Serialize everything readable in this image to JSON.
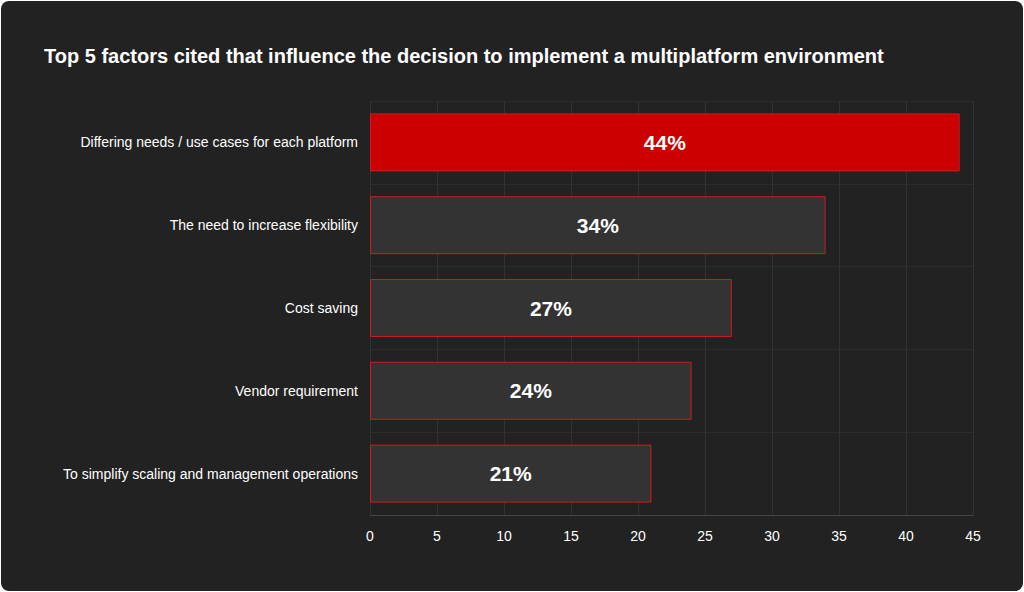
{
  "chart_data": {
    "type": "bar",
    "orientation": "horizontal",
    "title": "Top 5 factors cited that influence the decision to implement a multiplatform environment",
    "categories": [
      "Differing needs / use cases for each platform",
      "The need to increase flexibility",
      "Cost saving",
      "Vendor requirement",
      "To simplify scaling and management operations"
    ],
    "values": [
      44,
      34,
      27,
      24,
      21
    ],
    "value_labels": [
      "44%",
      "34%",
      "27%",
      "24%",
      "21%"
    ],
    "colors": [
      "#cc0000",
      "#333333",
      "#333333",
      "#333333",
      "#333333"
    ],
    "xlim": [
      0,
      45
    ],
    "xticks": [
      0,
      5,
      10,
      15,
      20,
      25,
      30,
      35,
      40,
      45
    ],
    "grid": true,
    "data_labels": true
  }
}
